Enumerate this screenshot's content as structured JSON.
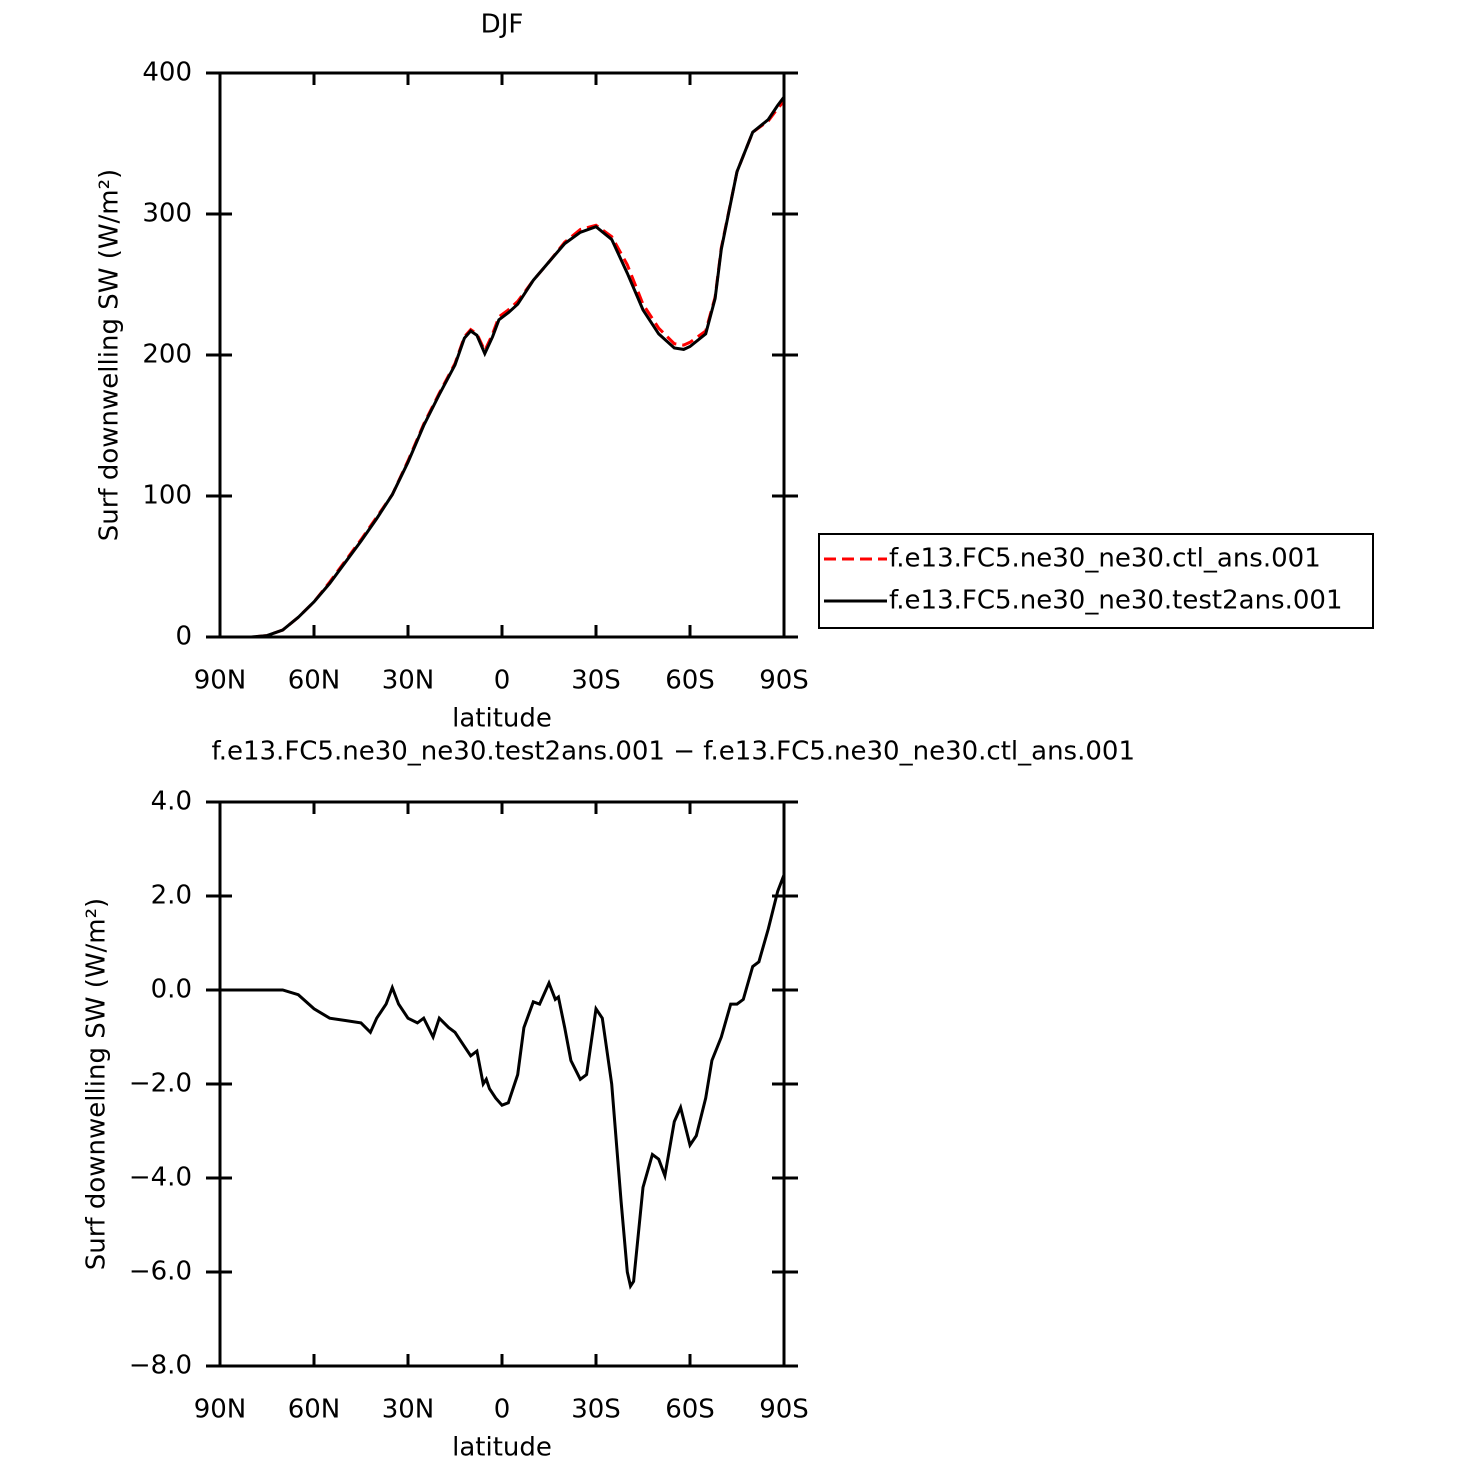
{
  "chart_data": [
    {
      "type": "line",
      "title": "DJF",
      "xlabel": "latitude",
      "ylabel": "Surf downwelling SW (W/m²)",
      "x": [
        90,
        85,
        80,
        75,
        70,
        65,
        60,
        55,
        50,
        45,
        40,
        35,
        30,
        25,
        20,
        15,
        12,
        10,
        8,
        5.5,
        3,
        1,
        -2,
        -5,
        -10,
        -15,
        -20,
        -25,
        -30,
        -35,
        -40,
        -45,
        -50,
        -55,
        -58,
        -60,
        -65,
        -68,
        -70,
        -75,
        -80,
        -85,
        -88,
        -90
      ],
      "series": [
        {
          "name": "f.e13.FC5.ne30_ne30.ctl_ans.001",
          "color": "#ff0000",
          "dash": true,
          "values": [
            0,
            0,
            0,
            1,
            5,
            14,
            25,
            39,
            54,
            69,
            85,
            101,
            125,
            151,
            173,
            194,
            213,
            218,
            215,
            203,
            215,
            227,
            232,
            238,
            253,
            266,
            280,
            289,
            292,
            284,
            264,
            236,
            219,
            208,
            207,
            209,
            217,
            241,
            276,
            330,
            358,
            366,
            375,
            380
          ]
        },
        {
          "name": "f.e13.FC5.ne30_ne30.test2ans.001",
          "color": "#000000",
          "dash": false,
          "values": [
            0,
            0,
            0,
            1,
            5,
            14,
            25,
            38,
            53,
            68,
            84,
            101,
            124,
            150,
            172,
            193,
            212,
            217,
            214,
            201,
            213,
            225,
            230,
            236,
            253,
            266,
            279,
            287,
            291,
            282,
            258,
            232,
            215,
            205,
            204,
            206,
            215,
            240,
            275,
            330,
            358,
            367,
            377,
            383
          ]
        }
      ],
      "xlim": [
        90,
        -90
      ],
      "xticks": [
        {
          "value": 90,
          "label": "90N"
        },
        {
          "value": 60,
          "label": "60N"
        },
        {
          "value": 30,
          "label": "30N"
        },
        0,
        {
          "value": -30,
          "label": "30S"
        },
        {
          "value": -60,
          "label": "60S"
        },
        {
          "value": -90,
          "label": "90S"
        }
      ],
      "ylim": [
        0,
        400
      ],
      "yticks": [
        0,
        100,
        200,
        300,
        400
      ],
      "legend": "right"
    },
    {
      "type": "line",
      "title": "f.e13.FC5.ne30_ne30.test2ans.001 − f.e13.FC5.ne30_ne30.ctl_ans.001",
      "xlabel": "latitude",
      "ylabel": "Surf downwelling SW (W/m²)",
      "x": [
        90,
        85,
        80,
        75,
        70,
        65,
        60,
        55,
        50,
        45,
        42,
        40,
        37,
        35,
        33,
        30,
        27,
        25,
        22,
        20,
        17,
        15,
        12,
        10,
        8,
        6,
        5,
        4,
        2,
        0,
        -2,
        -5,
        -7,
        -10,
        -12,
        -15,
        -17,
        -18,
        -20,
        -22,
        -25,
        -27,
        -30,
        -32,
        -35,
        -38,
        -40,
        -41,
        -42,
        -45,
        -48,
        -50,
        -52,
        -55,
        -57,
        -60,
        -62,
        -65,
        -67,
        -70,
        -73,
        -75,
        -77,
        -80,
        -82,
        -85,
        -88,
        -90
      ],
      "values": [
        0,
        0,
        0,
        0,
        0,
        -0.1,
        -0.4,
        -0.6,
        -0.65,
        -0.7,
        -0.9,
        -0.6,
        -0.3,
        0.05,
        -0.3,
        -0.6,
        -0.7,
        -0.6,
        -1.0,
        -0.6,
        -0.8,
        -0.9,
        -1.2,
        -1.4,
        -1.3,
        -2.0,
        -1.9,
        -2.1,
        -2.3,
        -2.45,
        -2.4,
        -1.8,
        -0.8,
        -0.25,
        -0.3,
        0.15,
        -0.2,
        -0.15,
        -0.8,
        -1.5,
        -1.9,
        -1.8,
        -0.4,
        -0.6,
        -2.0,
        -4.5,
        -6.0,
        -6.3,
        -6.2,
        -4.2,
        -3.5,
        -3.6,
        -3.95,
        -2.8,
        -2.5,
        -3.3,
        -3.1,
        -2.3,
        -1.5,
        -1.0,
        -0.3,
        -0.3,
        -0.2,
        0.5,
        0.6,
        1.3,
        2.1,
        2.45
      ],
      "color": "#000000",
      "xlim": [
        90,
        -90
      ],
      "xticks": [
        {
          "value": 90,
          "label": "90N"
        },
        {
          "value": 60,
          "label": "60N"
        },
        {
          "value": 30,
          "label": "30N"
        },
        0,
        {
          "value": -30,
          "label": "30S"
        },
        {
          "value": -60,
          "label": "60S"
        },
        {
          "value": -90,
          "label": "90S"
        }
      ],
      "ylim": [
        -8,
        4
      ],
      "yticks": [
        {
          "value": -8,
          "label": "−8.0"
        },
        {
          "value": -6,
          "label": "−6.0"
        },
        {
          "value": -4,
          "label": "−4.0"
        },
        {
          "value": -2,
          "label": "−2.0"
        },
        {
          "value": 0,
          "label": "0.0"
        },
        {
          "value": 2,
          "label": "2.0"
        },
        {
          "value": 4,
          "label": "4.0"
        }
      ]
    }
  ]
}
